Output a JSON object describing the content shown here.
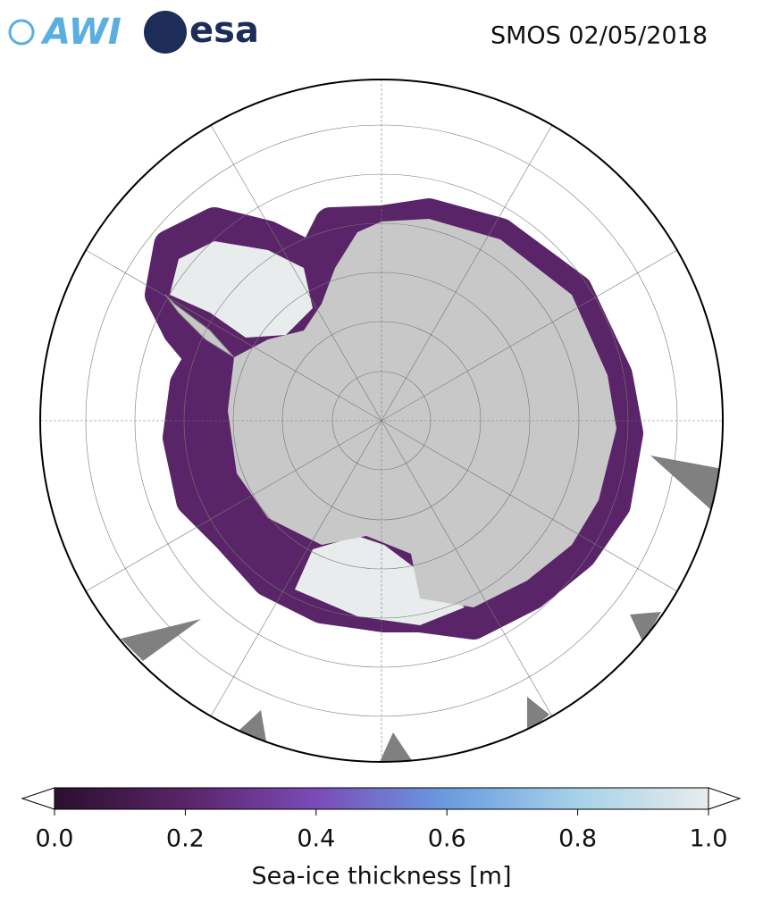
{
  "header": {
    "logos": [
      "AWI",
      "esa"
    ],
    "title": "SMOS 02/05/2018"
  },
  "colorbar": {
    "label": "Sea-ice thickness [m]",
    "lim": [
      0,
      1
    ],
    "ticks": [
      {
        "value": 0,
        "label": "0.0"
      },
      {
        "value": 0.2,
        "label": "0.2"
      },
      {
        "value": 0.4,
        "label": "0.4"
      },
      {
        "value": 0.6,
        "label": "0.6"
      },
      {
        "value": 0.8,
        "label": "0.8"
      },
      {
        "value": 1,
        "label": "1.0"
      }
    ],
    "colors": [
      "#2a0f2e",
      "#5a2468",
      "#7a4bb8",
      "#6a9be0",
      "#a6d2e8",
      "#e8ecec"
    ]
  }
}
